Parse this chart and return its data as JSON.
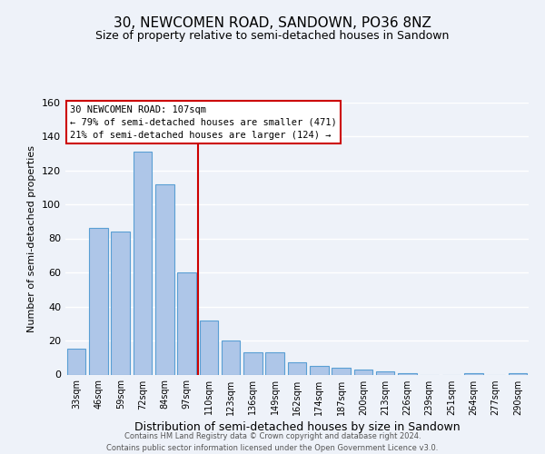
{
  "title": "30, NEWCOMEN ROAD, SANDOWN, PO36 8NZ",
  "subtitle": "Size of property relative to semi-detached houses in Sandown",
  "xlabel": "Distribution of semi-detached houses by size in Sandown",
  "ylabel": "Number of semi-detached properties",
  "categories": [
    "33sqm",
    "46sqm",
    "59sqm",
    "72sqm",
    "84sqm",
    "97sqm",
    "110sqm",
    "123sqm",
    "136sqm",
    "149sqm",
    "162sqm",
    "174sqm",
    "187sqm",
    "200sqm",
    "213sqm",
    "226sqm",
    "239sqm",
    "251sqm",
    "264sqm",
    "277sqm",
    "290sqm"
  ],
  "values": [
    15,
    86,
    84,
    131,
    112,
    60,
    32,
    20,
    13,
    13,
    7,
    5,
    4,
    3,
    2,
    1,
    0,
    0,
    1,
    0,
    1
  ],
  "bar_color": "#aec6e8",
  "bar_edge_color": "#5a9fd4",
  "highlight_line_index": 6,
  "highlight_line_color": "#cc0000",
  "ylim": [
    0,
    160
  ],
  "yticks": [
    0,
    20,
    40,
    60,
    80,
    100,
    120,
    140,
    160
  ],
  "annotation_title": "30 NEWCOMEN ROAD: 107sqm",
  "annotation_line1": "← 79% of semi-detached houses are smaller (471)",
  "annotation_line2": "21% of semi-detached houses are larger (124) →",
  "annotation_box_color": "#ffffff",
  "annotation_box_edge": "#cc0000",
  "footer_line1": "Contains HM Land Registry data © Crown copyright and database right 2024.",
  "footer_line2": "Contains public sector information licensed under the Open Government Licence v3.0.",
  "background_color": "#eef2f9",
  "grid_color": "#ffffff",
  "title_fontsize": 11,
  "subtitle_fontsize": 9,
  "xlabel_fontsize": 9,
  "ylabel_fontsize": 8
}
